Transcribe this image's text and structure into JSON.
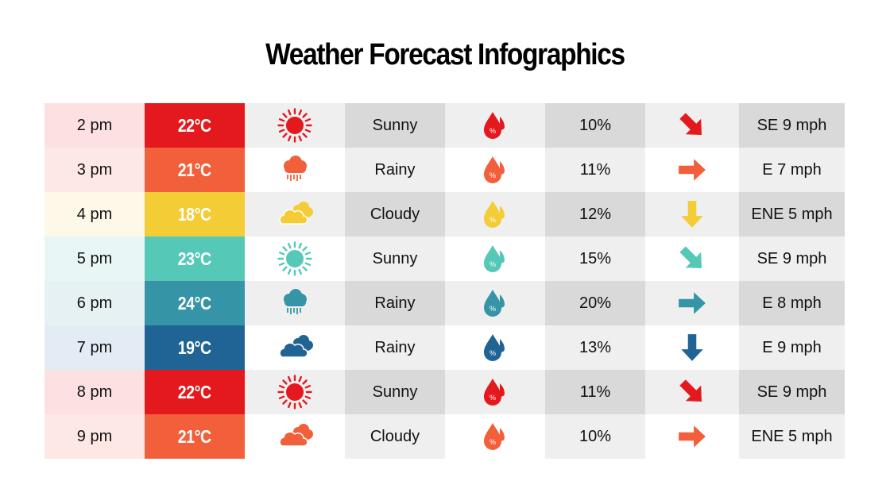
{
  "title": "Weather Forecast Infographics",
  "rows": [
    {
      "time": "2 pm",
      "temp": "22°C",
      "condition": "Sunny",
      "humidity": "10%",
      "wind": "SE 9 mph",
      "weather_icon": "sun-icon",
      "arrow": "arrow-down-right-icon",
      "color": "#e3191d",
      "tint": "#fde0e1"
    },
    {
      "time": "3 pm",
      "temp": "21°C",
      "condition": "Rainy",
      "humidity": "11%",
      "wind": "E 7 mph",
      "weather_icon": "rain-cloud-icon",
      "arrow": "arrow-right-icon",
      "color": "#f2603b",
      "tint": "#fde8e5"
    },
    {
      "time": "4 pm",
      "temp": "18°C",
      "condition": "Cloudy",
      "humidity": "12%",
      "wind": "ENE 5 mph",
      "weather_icon": "clouds-icon",
      "arrow": "arrow-down-icon",
      "color": "#f4cc35",
      "tint": "#fdf8e8"
    },
    {
      "time": "5 pm",
      "temp": "23°C",
      "condition": "Sunny",
      "humidity": "15%",
      "wind": "SE 9 mph",
      "weather_icon": "sun-icon",
      "arrow": "arrow-down-right-icon",
      "color": "#55c8b8",
      "tint": "#e8f7f5"
    },
    {
      "time": "6 pm",
      "temp": "24°C",
      "condition": "Rainy",
      "humidity": "20%",
      "wind": "E 8 mph",
      "weather_icon": "rain-cloud-icon",
      "arrow": "arrow-right-icon",
      "color": "#3595a6",
      "tint": "#e6f1f4"
    },
    {
      "time": "7 pm",
      "temp": "19°C",
      "condition": "Rainy",
      "humidity": "13%",
      "wind": "E 9 mph",
      "weather_icon": "clouds-icon",
      "arrow": "arrow-down-icon",
      "color": "#1f6494",
      "tint": "#e3ecf4"
    },
    {
      "time": "8 pm",
      "temp": "22°C",
      "condition": "Sunny",
      "humidity": "11%",
      "wind": "SE 9 mph",
      "weather_icon": "sun-icon",
      "arrow": "arrow-down-right-icon",
      "color": "#e3191d",
      "tint": "#fde0e1"
    },
    {
      "time": "9 pm",
      "temp": "21°C",
      "condition": "Cloudy",
      "humidity": "10%",
      "wind": "ENE 5 mph",
      "weather_icon": "clouds-icon",
      "arrow": "arrow-right-icon",
      "color": "#f2603b",
      "tint": "#fde8e5"
    }
  ]
}
